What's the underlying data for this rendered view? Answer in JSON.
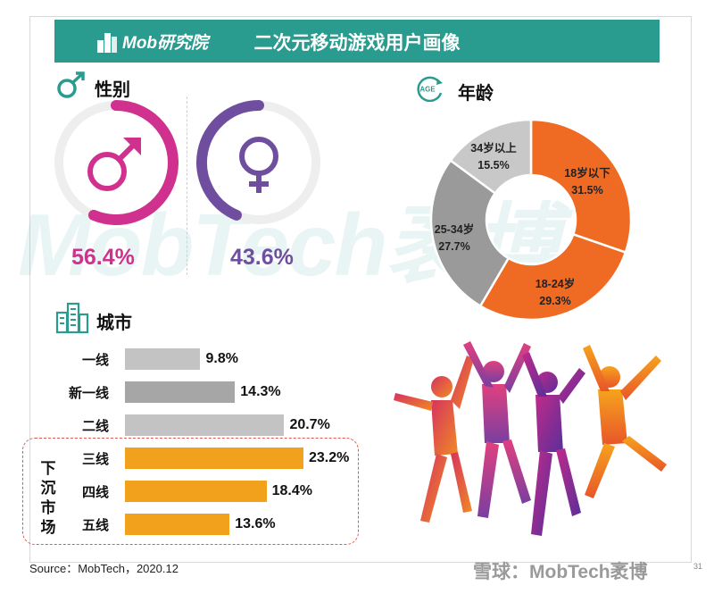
{
  "header": {
    "logo": "Mob研究院",
    "title": "二次元移动游戏用户画像"
  },
  "watermark": "MobTech袤博",
  "gender": {
    "title": "性别",
    "male_pct": "56.4%",
    "female_pct": "43.6%",
    "male_value": 56.4,
    "female_value": 43.6,
    "colors": {
      "male": "#d0318f",
      "female": "#6f4ea0"
    }
  },
  "age": {
    "title": "年龄",
    "icon_text": "AGE",
    "slices": [
      {
        "name": "18岁以下",
        "pct": "31.5%",
        "value": 31.5,
        "color": "#ef6a22"
      },
      {
        "name": "18-24岁",
        "pct": "29.3%",
        "value": 29.3,
        "color": "#ef6a22"
      },
      {
        "name": "25-34岁",
        "pct": "27.7%",
        "value": 27.7,
        "color": "#9a9a9a"
      },
      {
        "name": "34岁以上",
        "pct": "15.5%",
        "value": 15.5,
        "color": "#c8c8c8"
      }
    ]
  },
  "city": {
    "title": "城市",
    "sink_label": "下沉市场"
  },
  "chart_data": [
    {
      "type": "pie",
      "title": "性别",
      "categories": [
        "male",
        "female"
      ],
      "values": [
        56.4,
        43.6
      ]
    },
    {
      "type": "pie",
      "title": "年龄",
      "categories": [
        "18岁以下",
        "18-24岁",
        "25-34岁",
        "34岁以上"
      ],
      "values": [
        31.5,
        29.3,
        27.7,
        15.5
      ]
    },
    {
      "type": "bar",
      "title": "城市",
      "categories": [
        "一线",
        "新一线",
        "二线",
        "三线",
        "四线",
        "五线"
      ],
      "values": [
        9.8,
        14.3,
        20.7,
        23.2,
        18.4,
        13.6
      ],
      "value_labels": [
        "9.8%",
        "14.3%",
        "20.7%",
        "23.2%",
        "18.4%",
        "13.6%"
      ],
      "colors": [
        "#c3c3c3",
        "#a6a6a6",
        "#c3c3c3",
        "#f2a11c",
        "#f2a11c",
        "#f2a11c"
      ]
    }
  ],
  "source": "Source：MobTech，2020.12",
  "footer_mark": "雪球：MobTech袤博",
  "page_number": "31"
}
